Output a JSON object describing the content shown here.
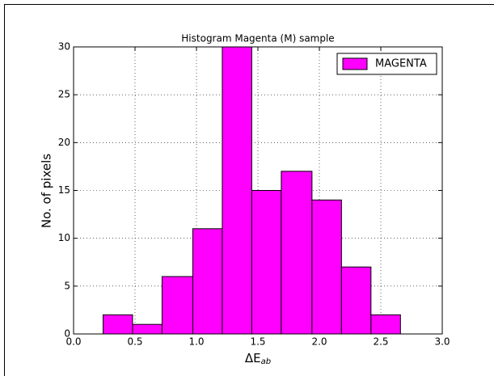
{
  "chart_data": {
    "type": "histogram",
    "title": "Histogram Magenta (M) sample",
    "xlabel": {
      "base": "ΔE",
      "sub": "ab"
    },
    "ylabel": "No. of pixels",
    "bins": [
      0.24,
      0.48,
      0.72,
      0.97,
      1.21,
      1.45,
      1.69,
      1.94,
      2.18,
      2.42,
      2.66
    ],
    "series": [
      {
        "name": "MAGENTA",
        "color": "#ff00ff",
        "values": [
          2,
          1,
          6,
          11,
          30,
          15,
          17,
          14,
          7,
          2
        ]
      }
    ],
    "xlim": [
      0,
      3
    ],
    "ylim": [
      0,
      30
    ],
    "xticks": [
      {
        "value": 0,
        "label": "0.0"
      },
      {
        "value": 0.5,
        "label": "0.5"
      },
      {
        "value": 1,
        "label": "1.0"
      },
      {
        "value": 1.5,
        "label": "1.5"
      },
      {
        "value": 2,
        "label": "2.0"
      },
      {
        "value": 2.5,
        "label": "2.5"
      },
      {
        "value": 3,
        "label": "3.0"
      }
    ],
    "yticks": [
      0,
      5,
      10,
      15,
      20,
      25,
      30
    ],
    "grid": true,
    "legend": "upper right"
  }
}
